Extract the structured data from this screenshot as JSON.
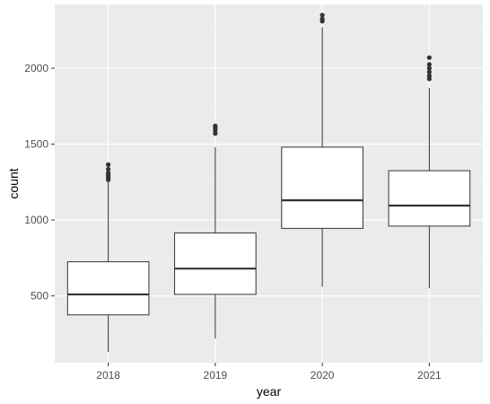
{
  "chart_data": {
    "type": "boxplot",
    "title": "",
    "xlabel": "year",
    "ylabel": "count",
    "categories": [
      "2018",
      "2019",
      "2020",
      "2021"
    ],
    "ylim": [
      60,
      2420
    ],
    "yticks": [
      500,
      1000,
      1500,
      2000
    ],
    "grid": true,
    "legend": "none",
    "boxes": [
      {
        "name": "2018",
        "whisker_low": 130,
        "q1": 375,
        "median": 510,
        "q3": 725,
        "whisker_high": 1255,
        "outliers": [
          1265,
          1280,
          1295,
          1310,
          1335,
          1365
        ]
      },
      {
        "name": "2019",
        "whisker_low": 220,
        "q1": 510,
        "median": 680,
        "q3": 915,
        "whisker_high": 1480,
        "outliers": [
          1570,
          1590,
          1605,
          1620
        ]
      },
      {
        "name": "2020",
        "whisker_low": 560,
        "q1": 945,
        "median": 1130,
        "q3": 1480,
        "whisker_high": 2270,
        "outliers": [
          2310,
          2325,
          2350
        ]
      },
      {
        "name": "2021",
        "whisker_low": 550,
        "q1": 960,
        "median": 1095,
        "q3": 1325,
        "whisker_high": 1870,
        "outliers": [
          1930,
          1950,
          1975,
          2000,
          2025,
          2070
        ]
      }
    ],
    "colors": {
      "panel": "#ebebeb",
      "grid_major": "#ffffff",
      "grid_minor": "#f5f5f5",
      "box_fill": "#ffffff",
      "box_line": "#333333",
      "outlier": "#333333"
    }
  }
}
